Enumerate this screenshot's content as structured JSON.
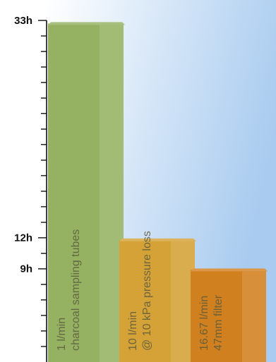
{
  "chart_data": {
    "type": "bar",
    "title": "",
    "xlabel": "",
    "ylabel": "",
    "ylim": [
      0,
      33
    ],
    "y_labeled_ticks": [
      {
        "value": 9,
        "label": "9h"
      },
      {
        "value": 12,
        "label": "12h"
      },
      {
        "value": 33,
        "label": "33h"
      }
    ],
    "y_minor_tick_step": 1.5,
    "background_gradient": [
      "#ffffff",
      "#a9cbef"
    ],
    "bars": [
      {
        "label_lines": [
          "1 l/min",
          "charcoal sampling tubes"
        ],
        "value": 32.7,
        "color": "#95b262"
      },
      {
        "label_lines": [
          "10 l/min",
          "@ 10 kPa pressure loss"
        ],
        "value": 11.8,
        "color": "#d4a236"
      },
      {
        "label_lines": [
          "16.67 l/min",
          "47mm filter"
        ],
        "value": 8.9,
        "color": "#d1801f"
      }
    ]
  }
}
